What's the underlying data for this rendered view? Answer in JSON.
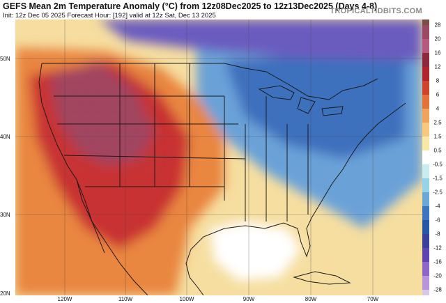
{
  "header": {
    "title": "GEFS Mean 2m Temperature Anomaly (°C) from 12z08Dec2025 to 12z13Dec2025 (Days 4-8)",
    "subtitle": "Init: 12z Dec 05 2025   Forecast Hour: [192]   valid at 12z Sat, Dec 13 2025",
    "brand": "TROPICALTIDBITS.COM"
  },
  "axes": {
    "lat_labels": [
      "50N",
      "40N",
      "30N",
      "20N"
    ],
    "lon_labels": [
      "120W",
      "110W",
      "100W",
      "90W",
      "80W",
      "70W"
    ]
  },
  "colorbar": {
    "labels": [
      "28",
      "20",
      "16",
      "12",
      "8",
      "6",
      "4",
      "2.5",
      "1.5",
      "0.5",
      "-0.5",
      "-1.5",
      "-2.5",
      "-4",
      "-6",
      "-8",
      "-12",
      "-16",
      "-20",
      "-28"
    ],
    "colors": [
      "#7a4f45",
      "#9c4a63",
      "#b55a7e",
      "#8c2a3c",
      "#b2242d",
      "#d0422b",
      "#e4703a",
      "#f0a35c",
      "#f6c97f",
      "#f9e7a7",
      "#ffffff",
      "#c9ecf0",
      "#96d3e6",
      "#6aa8d8",
      "#3f75c0",
      "#2a56a8",
      "#3a3f9a",
      "#5e44b0",
      "#8e66c8",
      "#b894dc"
    ],
    "below_color": "#d9c7ea"
  },
  "map": {
    "fields": [
      {
        "name": "warm-anomaly-west",
        "color": "#e9863f"
      },
      {
        "name": "warm-anomaly-southwest-core",
        "color": "#c93030"
      },
      {
        "name": "warm-anomaly-rockies-max",
        "color": "#a1445f"
      },
      {
        "name": "cold-anomaly-north-central",
        "color": "#6aa2d8"
      },
      {
        "name": "cold-anomaly-northeast-core",
        "color": "#3e6fbd"
      },
      {
        "name": "cold-anomaly-canada-max",
        "color": "#6a5bbf"
      },
      {
        "name": "neutral-gulf",
        "color": "#ffffff"
      }
    ]
  }
}
